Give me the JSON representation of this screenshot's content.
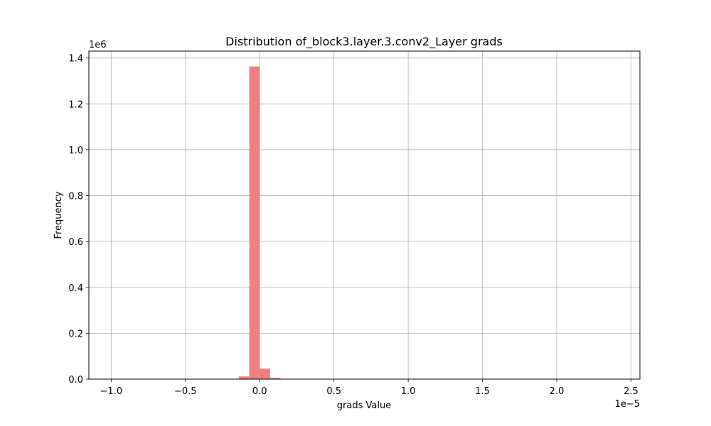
{
  "chart_data": {
    "type": "bar",
    "title": "Distribution of_block3.layer.3.conv2_Layer grads",
    "xlabel": "grads Value",
    "ylabel": "Frequency",
    "x_offset_label": "1e−5",
    "y_offset_label": "1e6",
    "x_ticks": [
      {
        "value": -1.0,
        "label": "−1.0"
      },
      {
        "value": -0.5,
        "label": "−0.5"
      },
      {
        "value": 0.0,
        "label": "0.0"
      },
      {
        "value": 0.5,
        "label": "0.5"
      },
      {
        "value": 1.0,
        "label": "1.0"
      },
      {
        "value": 1.5,
        "label": "1.5"
      },
      {
        "value": 2.0,
        "label": "2.0"
      },
      {
        "value": 2.5,
        "label": "2.5"
      }
    ],
    "y_ticks": [
      {
        "value": 0.0,
        "label": "0.0"
      },
      {
        "value": 0.2,
        "label": "0.2"
      },
      {
        "value": 0.4,
        "label": "0.4"
      },
      {
        "value": 0.6,
        "label": "0.6"
      },
      {
        "value": 0.8,
        "label": "0.8"
      },
      {
        "value": 1.0,
        "label": "1.0"
      },
      {
        "value": 1.2,
        "label": "1.2"
      },
      {
        "value": 1.4,
        "label": "1.4"
      }
    ],
    "xlim": [
      -1.15,
      2.56
    ],
    "ylim": [
      0,
      1.43
    ],
    "grid": true,
    "color": "#f08080",
    "bins": [
      {
        "x0": -0.21,
        "x1": -0.14,
        "value": 0.002
      },
      {
        "x0": -0.14,
        "x1": -0.07,
        "value": 0.012
      },
      {
        "x0": -0.07,
        "x1": 0.0,
        "value": 1.363
      },
      {
        "x0": 0.0,
        "x1": 0.07,
        "value": 0.046
      },
      {
        "x0": 0.07,
        "x1": 0.14,
        "value": 0.006
      }
    ]
  }
}
